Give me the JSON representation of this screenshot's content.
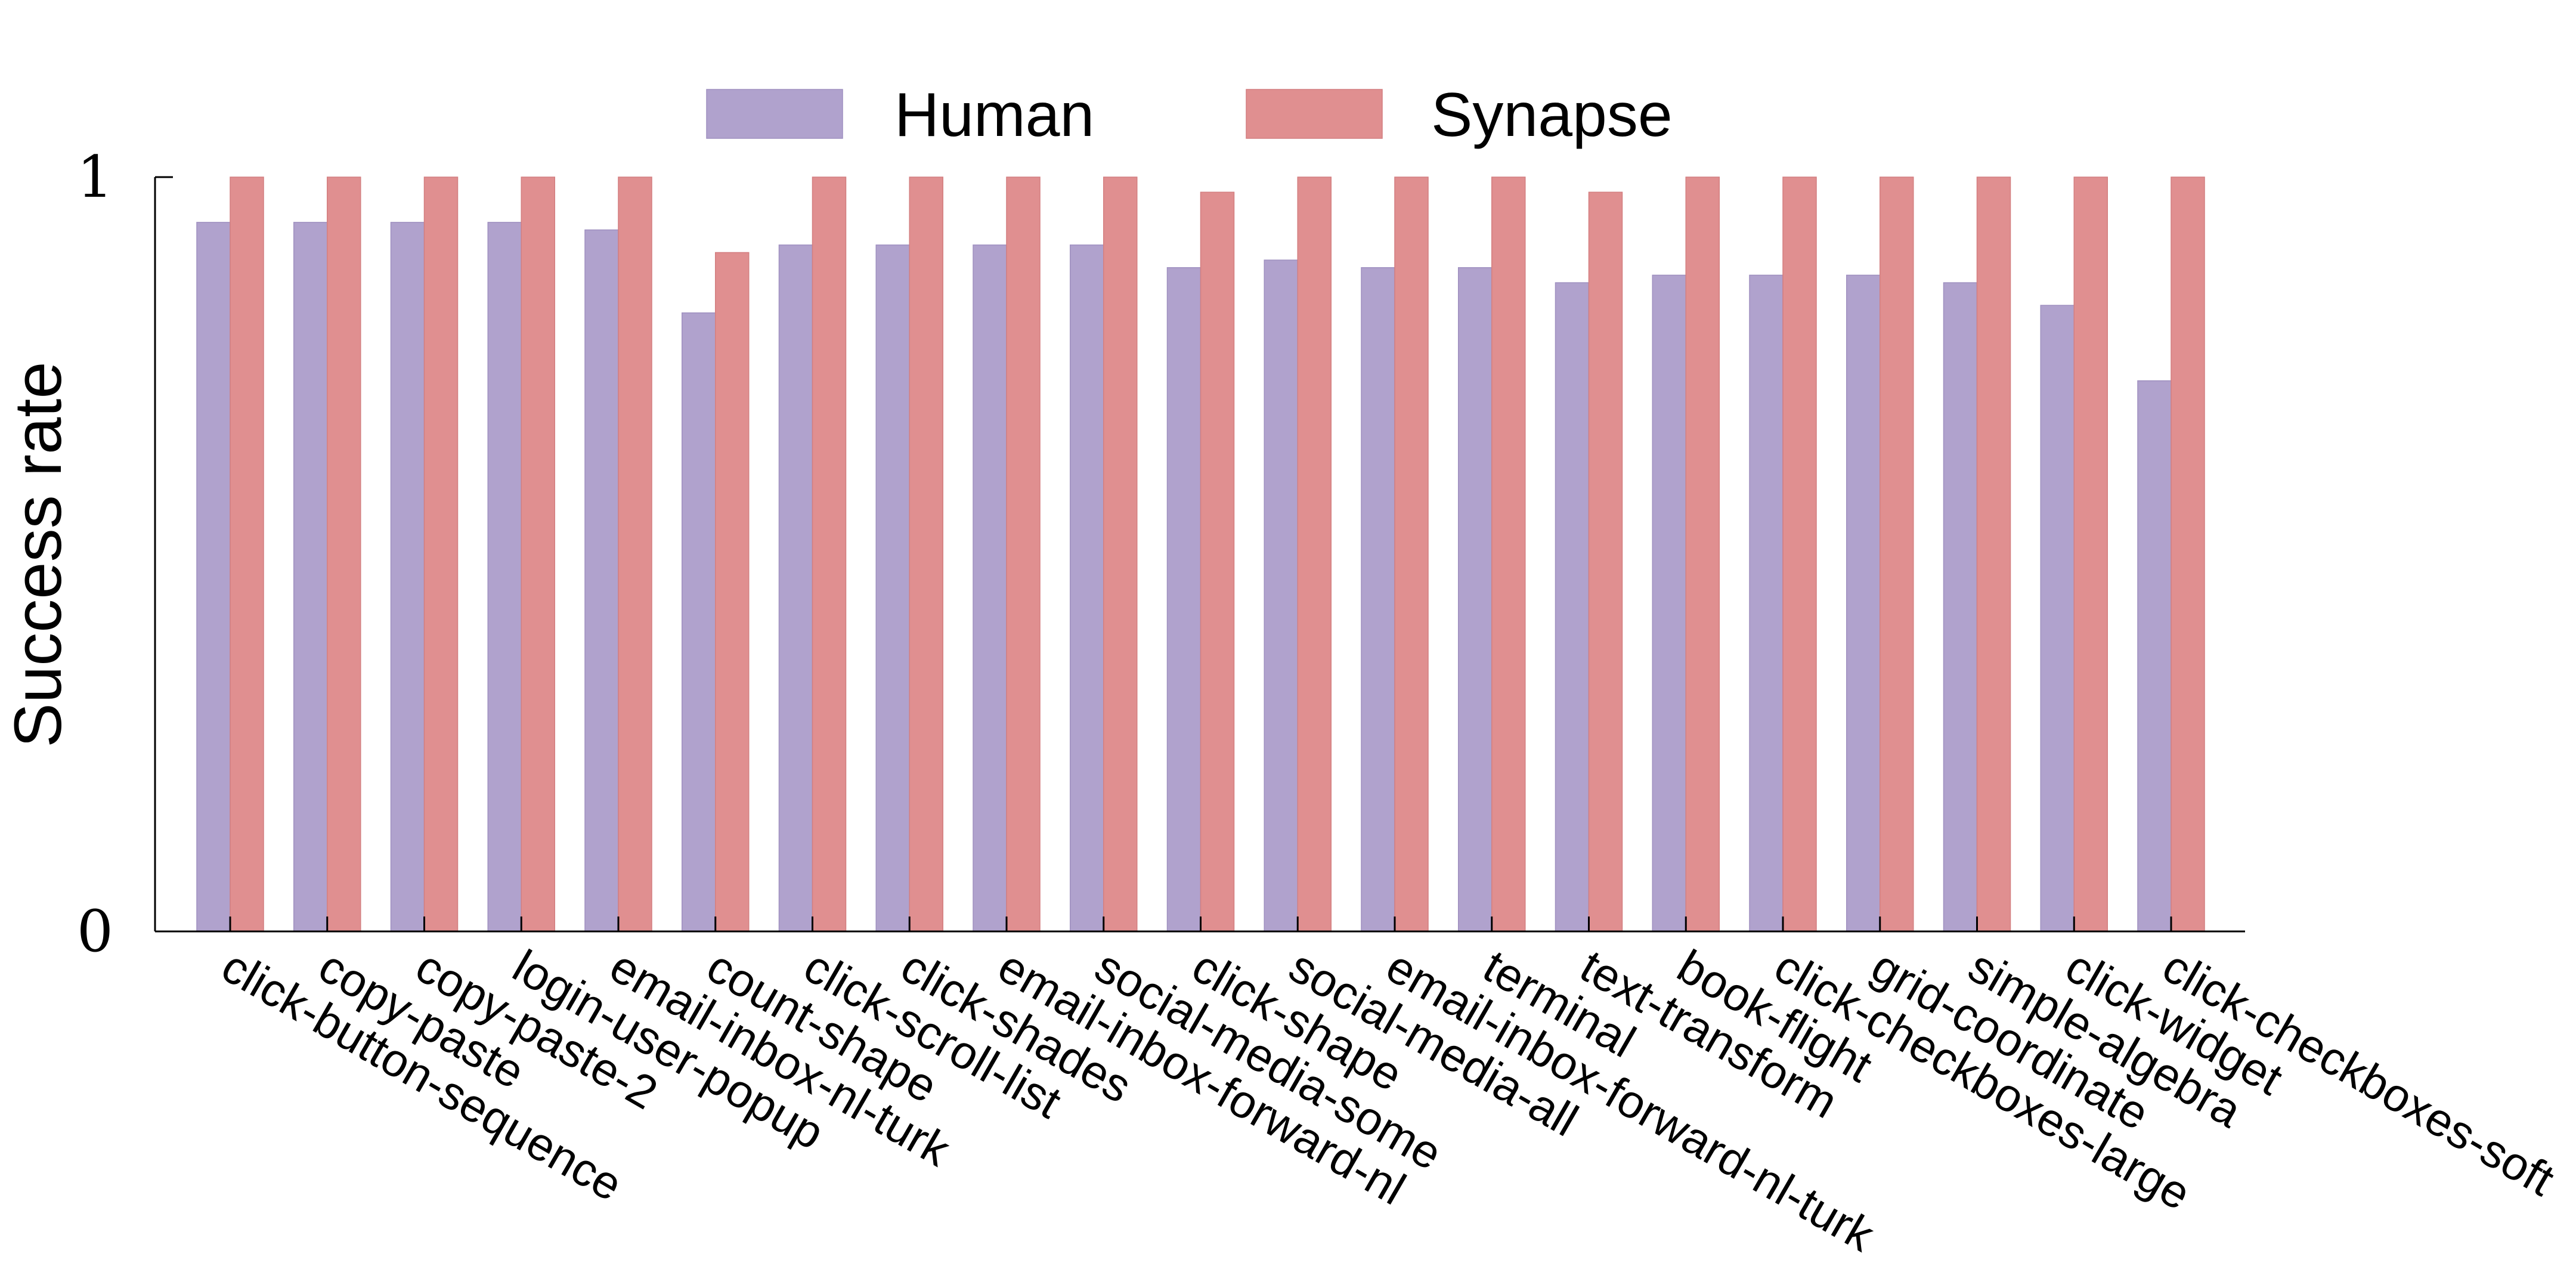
{
  "chart_data": {
    "type": "bar",
    "title": "",
    "xlabel": "",
    "ylabel": "Success rate",
    "ylim": [
      0,
      1
    ],
    "yticks": [
      {
        "value": 0,
        "label": "0"
      },
      {
        "value": 1,
        "label": "1"
      }
    ],
    "grid": false,
    "legend_position": "top-center",
    "categories": [
      "click-button-sequence",
      "copy-paste",
      "copy-paste-2",
      "login-user-popup",
      "email-inbox-nl-turk",
      "count-shape",
      "click-scroll-list",
      "click-shades",
      "email-inbox-forward-nl",
      "social-media-some",
      "click-shape",
      "social-media-all",
      "email-inbox-forward-nl-turk",
      "terminal",
      "text-transform",
      "book-flight",
      "click-checkboxes-large",
      "grid-coordinate",
      "simple-algebra",
      "click-widget",
      "click-checkboxes-soft"
    ],
    "series": [
      {
        "name": "Human",
        "color": "#b0a2cd",
        "values": [
          0.94,
          0.94,
          0.94,
          0.94,
          0.93,
          0.82,
          0.91,
          0.91,
          0.91,
          0.91,
          0.88,
          0.89,
          0.88,
          0.88,
          0.86,
          0.87,
          0.87,
          0.87,
          0.86,
          0.83,
          0.73
        ]
      },
      {
        "name": "Synapse",
        "color": "#e08f90",
        "values": [
          1.0,
          1.0,
          1.0,
          1.0,
          1.0,
          0.9,
          1.0,
          1.0,
          1.0,
          1.0,
          0.98,
          1.0,
          1.0,
          1.0,
          0.98,
          1.0,
          1.0,
          1.0,
          1.0,
          1.0,
          1.0
        ]
      }
    ]
  }
}
